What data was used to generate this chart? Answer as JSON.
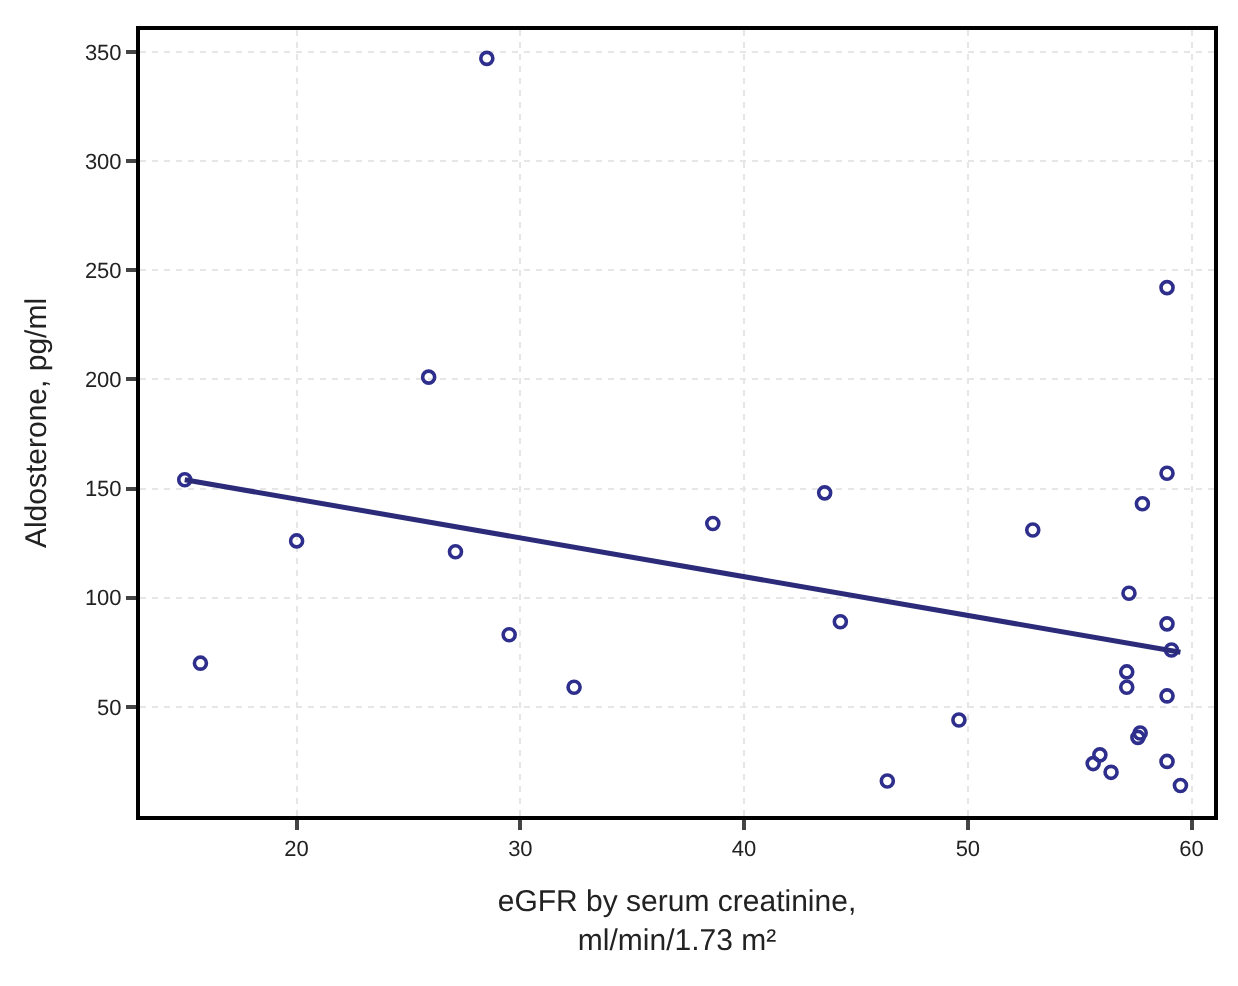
{
  "chart_data": {
    "type": "scatter",
    "xlabel": "eGFR by serum creatinine,\nml/min/1.73 m²",
    "ylabel": "Aldosterone, pg/ml",
    "xlim": [
      13,
      61
    ],
    "ylim": [
      0,
      360
    ],
    "xticks": [
      20,
      30,
      40,
      50,
      60
    ],
    "yticks": [
      50,
      100,
      150,
      200,
      250,
      300,
      350
    ],
    "grid": true,
    "marker": "circle",
    "series": [
      {
        "color": "#2e2e8c",
        "x": [
          28.5,
          25.9,
          15,
          58.9,
          58.9,
          57.8,
          43.6,
          15.7,
          20,
          27.1,
          29.5,
          32.4,
          38.6,
          44.3,
          46.4,
          49.6,
          52.9,
          57.2,
          58.9,
          59.1,
          57.1,
          57.1,
          58.9,
          57.6,
          57.7,
          55.9,
          55.6,
          56.4,
          58.9,
          59.5
        ],
        "values": [
          347,
          201,
          154,
          242,
          157,
          143,
          148,
          70,
          126,
          121,
          83,
          59,
          134,
          89,
          16,
          44,
          131,
          102,
          88,
          76,
          66,
          59,
          55,
          36,
          38,
          28,
          24,
          20,
          25,
          14
        ]
      },
      {
        "type": "line",
        "color": "#2b2b7a",
        "x": [
          15,
          59.5
        ],
        "values": [
          154,
          75
        ],
        "marker": "none"
      }
    ]
  }
}
